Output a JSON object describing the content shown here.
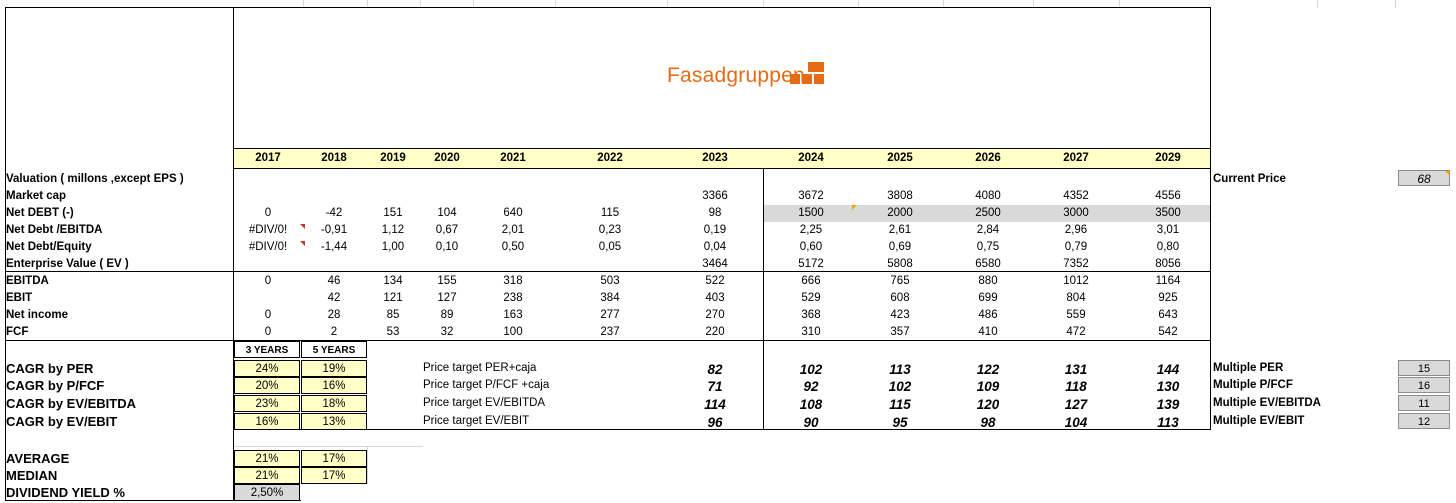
{
  "logo": {
    "text": "Fasadgruppen"
  },
  "years": [
    "2017",
    "2018",
    "2019",
    "2020",
    "2021",
    "2022",
    "2023",
    "2024",
    "2025",
    "2026",
    "2027",
    "2029"
  ],
  "rows": [
    {
      "label": "Valuation  ( millons ,except EPS )",
      "values": [
        "",
        "",
        "",
        "",
        "",
        "",
        "",
        "",
        "",
        "",
        "",
        ""
      ]
    },
    {
      "label": "Market cap",
      "values": [
        "",
        "",
        "",
        "",
        "",
        "",
        "3366",
        "3672",
        "3808",
        "4080",
        "4352",
        "4556"
      ]
    },
    {
      "label": "Net DEBT  (-)",
      "values": [
        "0",
        "-42",
        "151",
        "104",
        "640",
        "115",
        "98",
        "1500",
        "2000",
        "2500",
        "3000",
        "3500"
      ]
    },
    {
      "label": "Net Debt /EBITDA",
      "values": [
        "#DIV/0!",
        "-0,91",
        "1,12",
        "0,67",
        "2,01",
        "0,23",
        "0,19",
        "2,25",
        "2,61",
        "2,84",
        "2,96",
        "3,01"
      ]
    },
    {
      "label": "Net Debt/Equity",
      "values": [
        "#DIV/0!",
        "-1,44",
        "1,00",
        "0,10",
        "0,50",
        "0,05",
        "0,04",
        "0,60",
        "0,69",
        "0,75",
        "0,79",
        "0,80"
      ]
    },
    {
      "label": "Enterprise Value ( EV )",
      "values": [
        "",
        "",
        "",
        "",
        "",
        "",
        "3464",
        "5172",
        "5808",
        "6580",
        "7352",
        "8056"
      ]
    },
    {
      "label": "EBITDA",
      "values": [
        "0",
        "46",
        "134",
        "155",
        "318",
        "503",
        "522",
        "666",
        "765",
        "880",
        "1012",
        "1164"
      ]
    },
    {
      "label": "EBIT",
      "values": [
        "",
        "42",
        "121",
        "127",
        "238",
        "384",
        "403",
        "529",
        "608",
        "699",
        "804",
        "925"
      ]
    },
    {
      "label": "Net income",
      "values": [
        "0",
        "28",
        "85",
        "89",
        "163",
        "277",
        "270",
        "368",
        "423",
        "486",
        "559",
        "643"
      ]
    },
    {
      "label": "FCF",
      "values": [
        "0",
        "2",
        "53",
        "32",
        "100",
        "237",
        "220",
        "310",
        "357",
        "410",
        "472",
        "542"
      ]
    }
  ],
  "cagr": {
    "headers": [
      "3 YEARS",
      "5 YEARS"
    ],
    "rows": [
      {
        "label": "CAGR  by PER",
        "y3": "24%",
        "y5": "19%",
        "pt_label": "Price target  PER+caja",
        "pt": [
          "82",
          "102",
          "113",
          "122",
          "131",
          "144"
        ],
        "mult_label": "Multiple PER",
        "mult": "15"
      },
      {
        "label": "CAGR  by  P/FCF",
        "y3": "20%",
        "y5": "16%",
        "pt_label": "Price target  P/FCF +caja",
        "pt": [
          "71",
          "92",
          "102",
          "109",
          "118",
          "130"
        ],
        "mult_label": "Multiple P/FCF",
        "mult": "16"
      },
      {
        "label": "CAGR by EV/EBITDA",
        "y3": "23%",
        "y5": "18%",
        "pt_label": "Price target  EV/EBITDA",
        "pt": [
          "114",
          "108",
          "115",
          "120",
          "127",
          "139"
        ],
        "mult_label": "Multiple EV/EBITDA",
        "mult": "11"
      },
      {
        "label": "CAGR  by EV/EBIT",
        "y3": "16%",
        "y5": "13%",
        "pt_label": "Price target  EV/EBIT",
        "pt": [
          "96",
          "90",
          "95",
          "98",
          "104",
          "113"
        ],
        "mult_label": "Multiple EV/EBIT",
        "mult": "12"
      }
    ]
  },
  "summary": [
    {
      "label": "AVERAGE",
      "y3": "21%",
      "y5": "17%"
    },
    {
      "label": "MEDIAN",
      "y3": "21%",
      "y5": "17%"
    }
  ],
  "dividend": {
    "label": "DIVIDEND YIELD  %",
    "value": "2,50%"
  },
  "current_price": {
    "label": "Current Price",
    "value": "68"
  },
  "colors": {
    "logo": "#e46c16",
    "highlight": "#ffffc6",
    "input": "#d9d9d9"
  }
}
